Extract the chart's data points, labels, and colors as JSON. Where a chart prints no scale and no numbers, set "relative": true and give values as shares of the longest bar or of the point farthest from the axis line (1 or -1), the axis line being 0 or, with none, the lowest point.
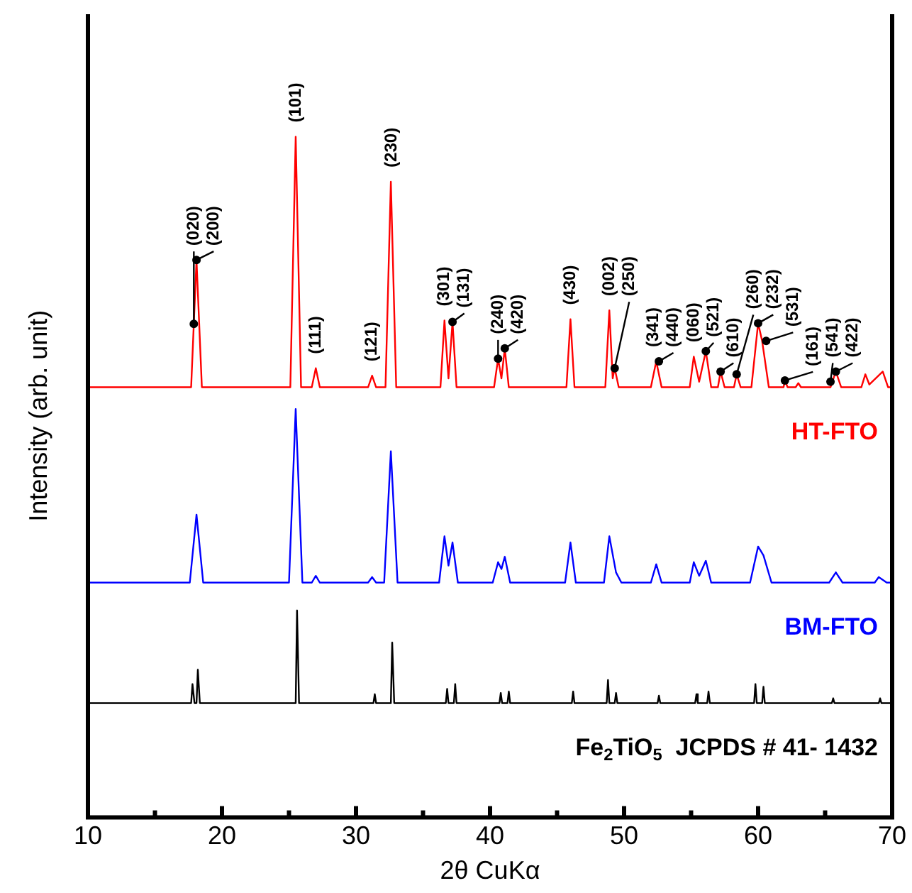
{
  "chart_data": {
    "type": "line",
    "relative": true,
    "xlabel": "2θ CuKα",
    "ylabel": "Intensity (arb. unit)",
    "xlim": [
      10,
      70
    ],
    "xticks": [
      10,
      {
        "value": 15,
        "label": null
      },
      20,
      {
        "value": 25,
        "label": null
      },
      30,
      {
        "value": 35,
        "label": null
      },
      40,
      {
        "value": 45,
        "label": null
      },
      50,
      {
        "value": 55,
        "label": null
      },
      60,
      {
        "value": 65,
        "label": null
      },
      70
    ],
    "grid": false,
    "legend": false,
    "marker": "none",
    "line_style": "solid",
    "series": [
      {
        "name": "HT-FTO",
        "color": "#ff0000",
        "x": [
          10,
          17.7,
          18.1,
          18.5,
          25.1,
          25.5,
          25.9,
          26.7,
          27.0,
          27.3,
          30.9,
          31.2,
          31.5,
          32.2,
          32.6,
          33.0,
          36.3,
          36.6,
          36.9,
          37.2,
          37.5,
          40.3,
          40.6,
          40.85,
          41.1,
          41.4,
          45.7,
          46.0,
          46.3,
          48.6,
          48.9,
          49.15,
          49.3,
          49.6,
          52.0,
          52.4,
          52.8,
          54.9,
          55.2,
          55.6,
          56.1,
          56.5,
          57.0,
          57.2,
          57.5,
          58.2,
          58.4,
          58.7,
          59.5,
          60.0,
          60.3,
          60.8,
          61.9,
          62.0,
          62.2,
          62.8,
          63.0,
          63.2,
          65.4,
          65.8,
          66.2,
          67.7,
          68.0,
          68.3,
          69.3,
          69.7,
          70
        ],
        "values": [
          0.632,
          0.632,
          0.819,
          0.632,
          0.632,
          1.0,
          0.632,
          0.632,
          0.66,
          0.632,
          0.632,
          0.649,
          0.632,
          0.632,
          0.934,
          0.632,
          0.632,
          0.73,
          0.645,
          0.728,
          0.632,
          0.632,
          0.674,
          0.645,
          0.689,
          0.632,
          0.632,
          0.732,
          0.632,
          0.632,
          0.745,
          0.645,
          0.66,
          0.632,
          0.632,
          0.67,
          0.632,
          0.632,
          0.677,
          0.64,
          0.685,
          0.632,
          0.632,
          0.655,
          0.632,
          0.632,
          0.651,
          0.632,
          0.632,
          0.726,
          0.7,
          0.632,
          0.632,
          0.642,
          0.632,
          0.632,
          0.638,
          0.632,
          0.632,
          0.655,
          0.632,
          0.632,
          0.651,
          0.636,
          0.655,
          0.632,
          0.632
        ]
      },
      {
        "name": "BM-FTO",
        "color": "#0000ff",
        "x": [
          10,
          17.6,
          18.1,
          18.6,
          25.0,
          25.5,
          26.0,
          26.7,
          27.0,
          27.3,
          30.9,
          31.2,
          31.5,
          32.1,
          32.6,
          33.1,
          36.2,
          36.6,
          36.9,
          37.2,
          37.6,
          40.2,
          40.6,
          40.85,
          41.1,
          41.5,
          45.6,
          46.0,
          46.4,
          48.5,
          48.9,
          49.4,
          49.8,
          52.0,
          52.4,
          52.8,
          54.9,
          55.2,
          55.6,
          56.1,
          56.5,
          59.4,
          60.0,
          60.4,
          61.0,
          65.3,
          65.8,
          66.3,
          68.7,
          69.0,
          69.6,
          70
        ],
        "values": [
          0.345,
          0.345,
          0.445,
          0.345,
          0.345,
          0.6,
          0.345,
          0.345,
          0.355,
          0.345,
          0.345,
          0.353,
          0.345,
          0.345,
          0.538,
          0.345,
          0.345,
          0.413,
          0.37,
          0.404,
          0.345,
          0.345,
          0.375,
          0.365,
          0.383,
          0.345,
          0.345,
          0.404,
          0.345,
          0.345,
          0.413,
          0.36,
          0.345,
          0.345,
          0.372,
          0.345,
          0.345,
          0.375,
          0.355,
          0.377,
          0.345,
          0.345,
          0.398,
          0.385,
          0.345,
          0.345,
          0.36,
          0.345,
          0.345,
          0.353,
          0.345,
          0.345
        ]
      },
      {
        "name": "Fe$_{2}$TiO$_{5}$  JCPDS # 41- 1432",
        "color": "#000000",
        "x": [
          10,
          17.7,
          17.8,
          17.95,
          18.1,
          18.2,
          18.35,
          25.5,
          25.6,
          25.75,
          31.3,
          31.4,
          31.5,
          32.6,
          32.7,
          32.85,
          36.7,
          36.8,
          36.9,
          37.3,
          37.4,
          37.5,
          40.7,
          40.8,
          40.9,
          41.3,
          41.4,
          41.5,
          46.1,
          46.2,
          46.3,
          48.7,
          48.8,
          48.9,
          49.3,
          49.4,
          49.5,
          52.5,
          52.6,
          52.7,
          55.3,
          55.4,
          55.5,
          56.2,
          56.3,
          56.4,
          59.7,
          59.8,
          59.9,
          60.3,
          60.4,
          60.5,
          65.5,
          65.6,
          65.7,
          69.0,
          69.1,
          69.2,
          70
        ],
        "values": [
          0.168,
          0.168,
          0.196,
          0.168,
          0.168,
          0.217,
          0.168,
          0.168,
          0.304,
          0.168,
          0.168,
          0.181,
          0.168,
          0.168,
          0.257,
          0.168,
          0.168,
          0.189,
          0.168,
          0.168,
          0.196,
          0.168,
          0.168,
          0.183,
          0.168,
          0.168,
          0.185,
          0.168,
          0.168,
          0.185,
          0.168,
          0.168,
          0.202,
          0.168,
          0.168,
          0.183,
          0.168,
          0.168,
          0.179,
          0.168,
          0.168,
          0.181,
          0.168,
          0.168,
          0.185,
          0.168,
          0.168,
          0.196,
          0.168,
          0.168,
          0.192,
          0.168,
          0.168,
          0.175,
          0.168,
          0.168,
          0.175,
          0.168,
          0.168
        ]
      }
    ],
    "annotations": [
      {
        "text": "(020)",
        "x": 17.9,
        "y": 0.725
      },
      {
        "text": "(200)",
        "x": 18.1,
        "y": 0.819
      },
      {
        "text": "(101)",
        "x": 25.5,
        "y": 1.0
      },
      {
        "text": "(111)",
        "x": 27.0,
        "y": 0.66
      },
      {
        "text": "(121)",
        "x": 31.2,
        "y": 0.649
      },
      {
        "text": "(230)",
        "x": 32.6,
        "y": 0.934
      },
      {
        "text": "(301)",
        "x": 36.6,
        "y": 0.73
      },
      {
        "text": "(131)",
        "x": 37.2,
        "y": 0.728
      },
      {
        "text": "(240)",
        "x": 40.6,
        "y": 0.674
      },
      {
        "text": "(420)",
        "x": 41.1,
        "y": 0.689
      },
      {
        "text": "(430)",
        "x": 46.0,
        "y": 0.732
      },
      {
        "text": "(002)",
        "x": 48.9,
        "y": 0.745
      },
      {
        "text": "(250)",
        "x": 49.3,
        "y": 0.66
      },
      {
        "text": "(341)",
        "x": 52.2,
        "y": 0.67
      },
      {
        "text": "(440)",
        "x": 52.6,
        "y": 0.67
      },
      {
        "text": "(060)",
        "x": 55.2,
        "y": 0.677
      },
      {
        "text": "(521)",
        "x": 56.1,
        "y": 0.685
      },
      {
        "text": "(610)",
        "x": 57.2,
        "y": 0.655
      },
      {
        "text": "(260)",
        "x": 58.4,
        "y": 0.651
      },
      {
        "text": "(232)",
        "x": 60.0,
        "y": 0.726
      },
      {
        "text": "(531)",
        "x": 60.6,
        "y": 0.7
      },
      {
        "text": "(161)",
        "x": 62.0,
        "y": 0.642
      },
      {
        "text": "(541)",
        "x": 65.4,
        "y": 0.64
      },
      {
        "text": "(422)",
        "x": 65.8,
        "y": 0.655
      }
    ]
  }
}
